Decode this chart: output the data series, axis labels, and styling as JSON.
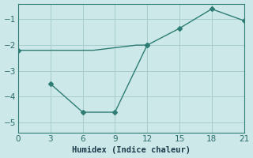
{
  "line1_x": [
    0,
    1,
    2,
    3,
    4,
    5,
    6,
    7,
    8,
    9,
    10,
    11,
    12
  ],
  "line1_y": [
    -2.2,
    -2.2,
    -2.2,
    -2.2,
    -2.2,
    -2.2,
    -2.2,
    -2.2,
    -2.15,
    -2.1,
    -2.05,
    -2.0,
    -2.0
  ],
  "line2_x": [
    3,
    6,
    9,
    12,
    15,
    18,
    21
  ],
  "line2_y": [
    -3.5,
    -4.6,
    -4.6,
    -2.0,
    -1.35,
    -0.6,
    -1.05
  ],
  "line_color": "#2d7d74",
  "marker": "D",
  "marker_size": 3,
  "bg_color": "#cde8e8",
  "grid_color": "#a8cccc",
  "xlabel": "Humidex (Indice chaleur)",
  "xlim": [
    0,
    21
  ],
  "ylim": [
    -5.4,
    -0.4
  ],
  "xticks": [
    0,
    3,
    6,
    9,
    12,
    15,
    18,
    21
  ],
  "yticks": [
    -5,
    -4,
    -3,
    -2,
    -1
  ],
  "tick_color": "#2d6b6b",
  "spine_color": "#2d7d74",
  "font_color": "#1a3a4a",
  "xlabel_fontsize": 7.5
}
